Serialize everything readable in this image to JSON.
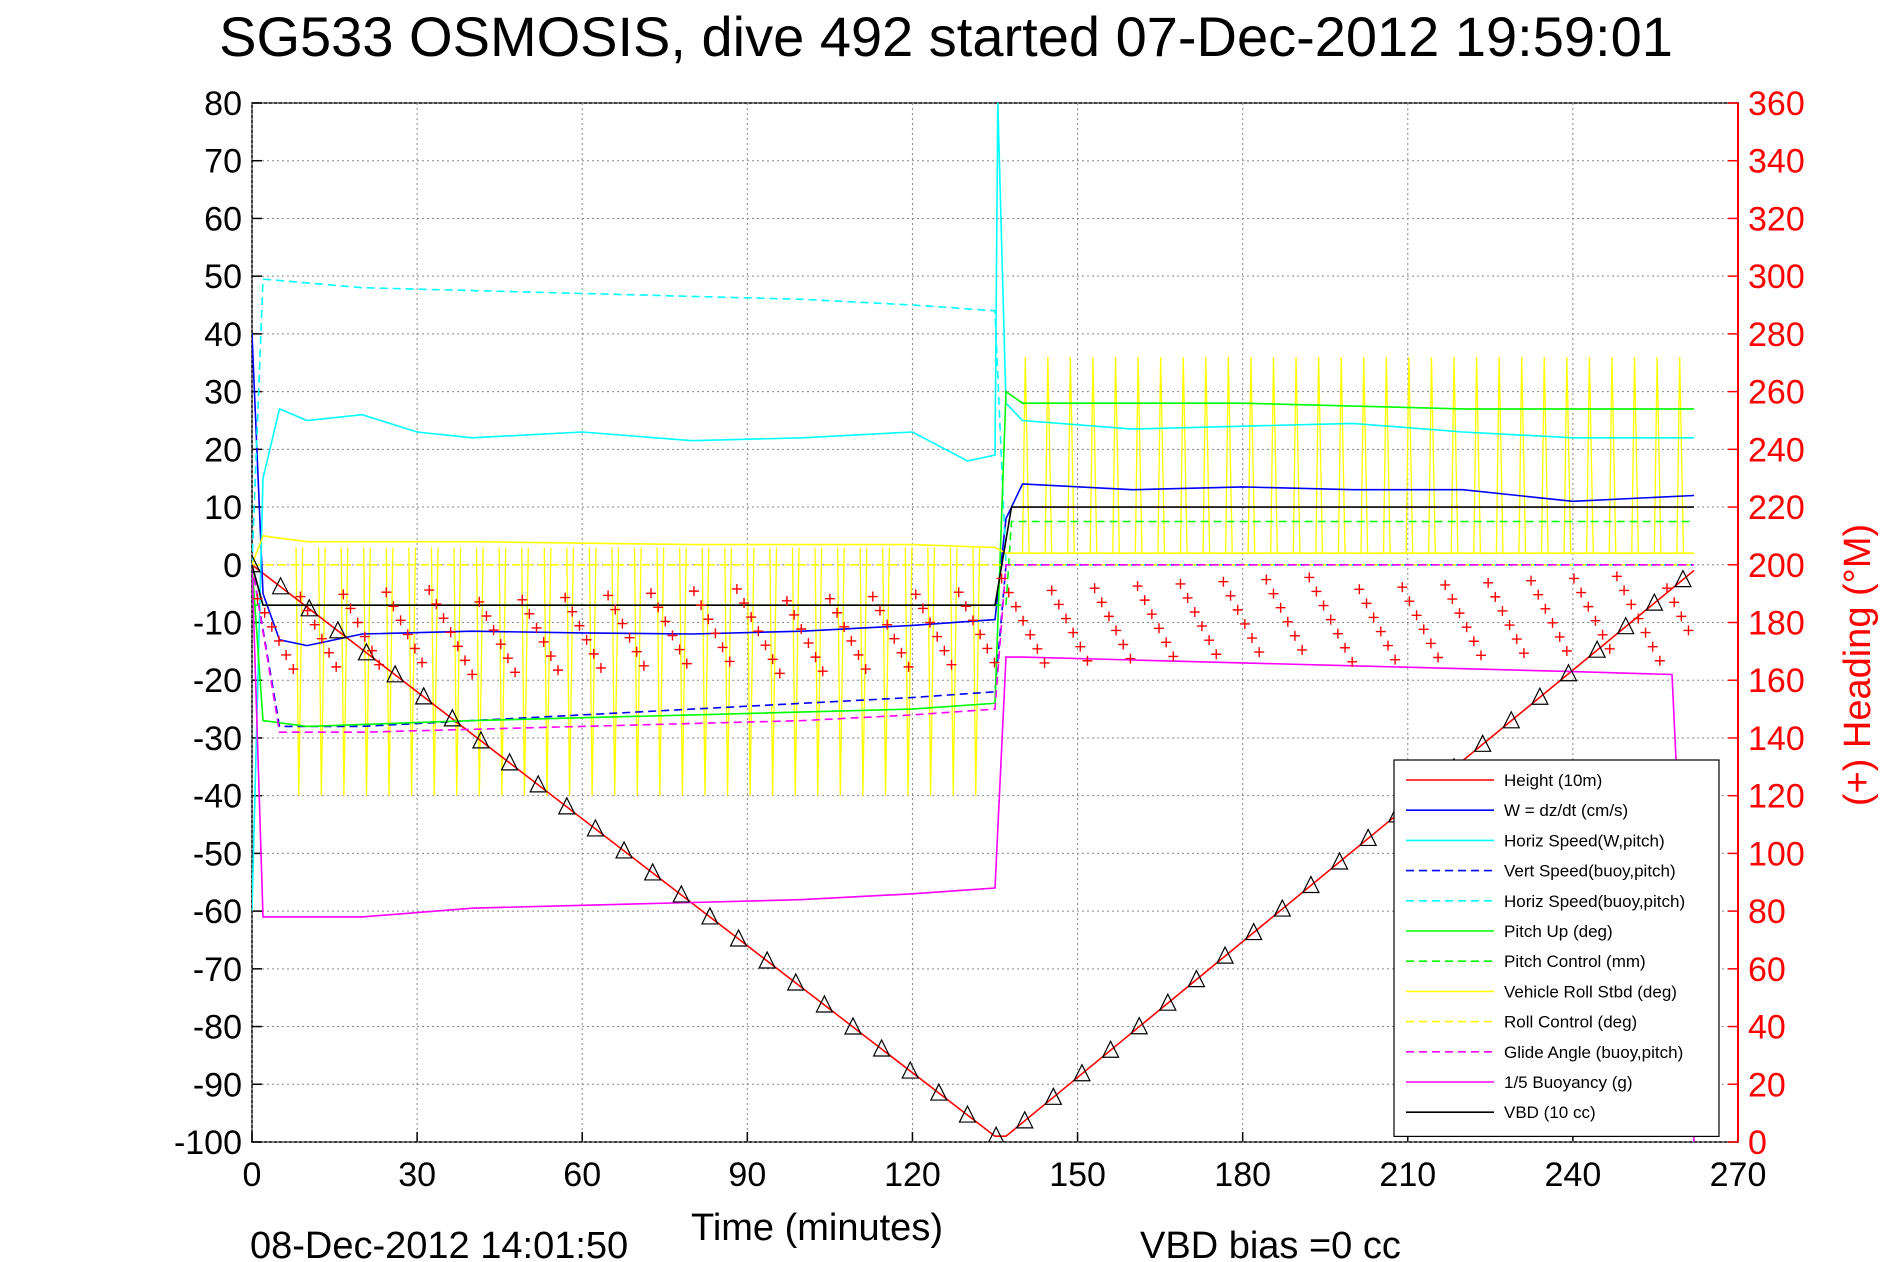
{
  "chart_data": {
    "type": "line",
    "title": "SG533 OSMOSIS, dive 492 started 07-Dec-2012 19:59:01",
    "xlabel": "Time (minutes)",
    "ylabel_right": "(+) Heading (°M)",
    "footer_left": "08-Dec-2012 14:01:50",
    "footer_right": "VBD bias =0 cc",
    "xlim": [
      0,
      270
    ],
    "ylim": [
      -100,
      80
    ],
    "ylim_right": [
      0,
      360
    ],
    "xticks": [
      "0",
      "30",
      "60",
      "90",
      "120",
      "150",
      "180",
      "210",
      "240",
      "270"
    ],
    "yticks": [
      "80",
      "70",
      "60",
      "50",
      "40",
      "30",
      "20",
      "10",
      "0",
      "-10",
      "-20",
      "-30",
      "-40",
      "-50",
      "-60",
      "-70",
      "-80",
      "-90",
      "-100"
    ],
    "yticks_right": [
      "360",
      "340",
      "320",
      "300",
      "280",
      "260",
      "240",
      "220",
      "200",
      "180",
      "160",
      "140",
      "120",
      "100",
      "80",
      "60",
      "40",
      "20",
      "0"
    ],
    "grid": true,
    "legend_position": "bottom-right",
    "legend": [
      {
        "label": "Height (10m)",
        "color": "#ff0000",
        "style": "solid"
      },
      {
        "label": "W = dz/dt (cm/s)",
        "color": "#0000ff",
        "style": "solid"
      },
      {
        "label": "Horiz Speed(W,pitch)",
        "color": "#00ffff",
        "style": "solid"
      },
      {
        "label": "Vert Speed(buoy,pitch)",
        "color": "#0000ff",
        "style": "dashed"
      },
      {
        "label": "Horiz Speed(buoy,pitch)",
        "color": "#00ffff",
        "style": "dashed"
      },
      {
        "label": "Pitch Up (deg)",
        "color": "#00ff00",
        "style": "solid"
      },
      {
        "label": "Pitch Control (mm)",
        "color": "#00ff00",
        "style": "dashed"
      },
      {
        "label": "Vehicle Roll Stbd (deg)",
        "color": "#ffff00",
        "style": "solid"
      },
      {
        "label": "Roll Control (deg)",
        "color": "#ffff00",
        "style": "dashed"
      },
      {
        "label": "Glide Angle (buoy,pitch)",
        "color": "#ff00ff",
        "style": "dashed"
      },
      {
        "label": "1/5 Buoyancy (g)",
        "color": "#ff00ff",
        "style": "solid"
      },
      {
        "label": "VBD (10 cc)",
        "color": "#000000",
        "style": "solid"
      }
    ],
    "series": [
      {
        "name": "Height (10m)",
        "color": "#ff0000",
        "x": [
          0,
          135,
          137,
          262
        ],
        "y": [
          0,
          -99,
          -99,
          -1
        ]
      },
      {
        "name": "W = dz/dt (cm/s)",
        "color": "#0000ff",
        "x": [
          0,
          2,
          5,
          10,
          20,
          40,
          60,
          80,
          100,
          120,
          135,
          137,
          140,
          160,
          180,
          200,
          220,
          240,
          262
        ],
        "y": [
          40,
          -5,
          -13,
          -14,
          -12,
          -11.5,
          -11.8,
          -12,
          -11.5,
          -10.5,
          -9.5,
          8,
          14,
          13,
          13.5,
          13,
          13,
          11,
          12
        ]
      },
      {
        "name": "Horiz Speed(W,pitch)",
        "color": "#00ffff",
        "x": [
          0,
          2,
          5,
          10,
          20,
          30,
          40,
          60,
          80,
          100,
          120,
          130,
          135,
          135.5,
          137,
          140,
          160,
          180,
          200,
          220,
          240,
          262
        ],
        "y": [
          -60,
          15,
          27,
          25,
          26,
          23,
          22,
          23,
          21.5,
          22,
          23,
          18,
          19,
          80,
          28,
          25,
          23.5,
          24,
          24.5,
          23,
          22,
          22
        ]
      },
      {
        "name": "Vert Speed(buoy,pitch)",
        "color": "#0000ff",
        "x": [
          0,
          5,
          20,
          40,
          60,
          80,
          100,
          120,
          135,
          137,
          262
        ],
        "y": [
          0,
          -28,
          -28,
          -27,
          -26,
          -25,
          -24,
          -23,
          -22,
          0,
          0
        ]
      },
      {
        "name": "Horiz Speed(buoy,pitch)",
        "color": "#00ffff",
        "x": [
          0,
          2,
          20,
          40,
          60,
          80,
          100,
          120,
          135,
          137,
          262
        ],
        "y": [
          0,
          49.5,
          48,
          47.5,
          47,
          46.5,
          46,
          45,
          44,
          0,
          0
        ]
      },
      {
        "name": "Pitch Up (deg)",
        "color": "#00ff00",
        "x": [
          0,
          2,
          10,
          40,
          80,
          120,
          135,
          137,
          140,
          180,
          220,
          262
        ],
        "y": [
          0,
          -27,
          -28,
          -27,
          -26,
          -25,
          -24,
          30,
          28,
          28,
          27,
          27
        ]
      },
      {
        "name": "Pitch Control (mm)",
        "color": "#00ff00",
        "x": [
          0,
          137,
          138,
          262
        ],
        "y": [
          -7,
          -7,
          7.5,
          7.5
        ]
      },
      {
        "name": "Vehicle Roll Stbd (deg)",
        "color": "#ffff00",
        "x": [
          0,
          2,
          10,
          40,
          80,
          120,
          135,
          137,
          140,
          180,
          220,
          262
        ],
        "y": [
          0,
          5,
          4,
          4,
          3.5,
          3.5,
          3,
          2,
          2,
          2,
          2,
          2
        ]
      },
      {
        "name": "Roll Control (deg)",
        "color": "#ffff00",
        "x": [
          0,
          262
        ],
        "y": [
          0,
          0
        ]
      },
      {
        "name": "Glide Angle (buoy,pitch)",
        "color": "#ff00ff",
        "x": [
          0,
          5,
          20,
          40,
          60,
          80,
          100,
          120,
          135,
          137,
          262
        ],
        "y": [
          0,
          -29,
          -29,
          -28.5,
          -28,
          -27.5,
          -27,
          -26,
          -25,
          0,
          0
        ]
      },
      {
        "name": "1/5 Buoyancy (g)",
        "color": "#ff00ff",
        "x": [
          0,
          2,
          20,
          40,
          60,
          80,
          100,
          120,
          135,
          137,
          140,
          160,
          180,
          200,
          220,
          240,
          258,
          262
        ],
        "y": [
          0,
          -61,
          -61,
          -59.5,
          -59,
          -58.5,
          -58,
          -57,
          -56,
          -16,
          -16,
          -16.5,
          -17,
          -17.5,
          -18,
          -18.5,
          -19,
          -100
        ]
      },
      {
        "name": "VBD (10 cc)",
        "color": "#000000",
        "x": [
          0,
          2,
          10,
          135,
          138,
          262
        ],
        "y": [
          0,
          -7,
          -7,
          -7,
          10,
          10
        ]
      }
    ],
    "heading_points": {
      "name": "Heading",
      "color": "#ff0000",
      "marker": "+",
      "axis": "right"
    }
  }
}
